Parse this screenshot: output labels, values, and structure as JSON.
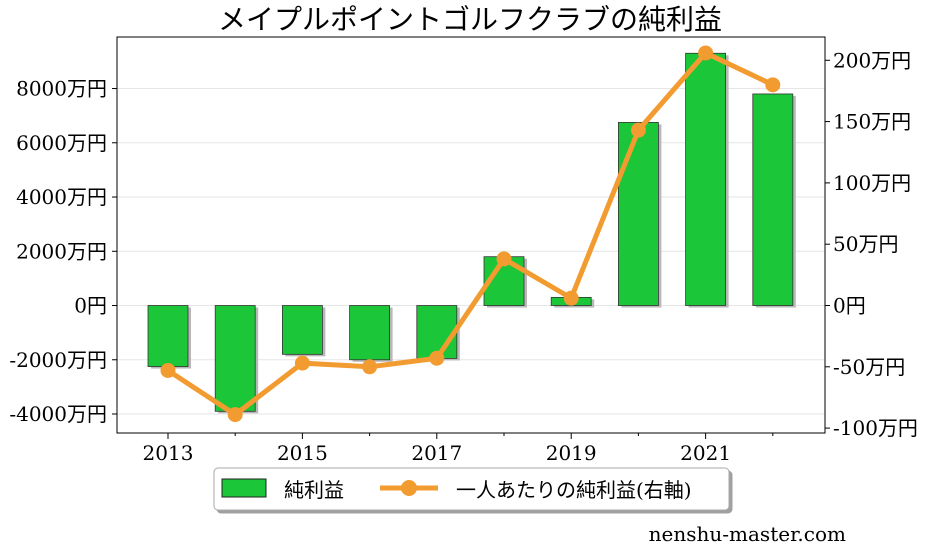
{
  "chart_data": {
    "type": "bar+line",
    "title": "メイプルポイントゴルフクラブの純利益",
    "categories": [
      "2013",
      "2014",
      "2015",
      "2016",
      "2017",
      "2018",
      "2019",
      "2020",
      "2021",
      "2022"
    ],
    "x_tick_labels": [
      "2013",
      "2015",
      "2017",
      "2019",
      "2021"
    ],
    "series": [
      {
        "name": "純利益",
        "type": "bar",
        "axis": "left",
        "unit": "万円",
        "color": "#1bc638",
        "values": [
          -2250,
          -3900,
          -1800,
          -2000,
          -1950,
          1800,
          300,
          6750,
          9300,
          7800
        ]
      },
      {
        "name": "一人あたりの純利益(右軸)",
        "type": "line",
        "axis": "right",
        "unit": "万円",
        "color": "#f29b30",
        "values": [
          -53,
          -89,
          -47,
          -50,
          -43,
          38,
          6,
          143,
          206,
          180
        ]
      }
    ],
    "y_left": {
      "range": [
        -4700,
        9900
      ],
      "ticks": [
        -4000,
        -2000,
        0,
        2000,
        4000,
        6000,
        8000
      ],
      "tick_labels": [
        "-4000万円",
        "-2000万円",
        "0円",
        "2000万円",
        "4000万円",
        "6000万円",
        "8000万円"
      ]
    },
    "y_right": {
      "range": [
        -104,
        219
      ],
      "ticks": [
        -100,
        -50,
        0,
        50,
        100,
        150,
        200
      ],
      "tick_labels": [
        "-100万円",
        "-50万円",
        "0円",
        "50万円",
        "100万円",
        "150万円",
        "200万円"
      ]
    },
    "grid": true,
    "legend_position": "bottom-center"
  },
  "watermark": "nenshu-master.com"
}
